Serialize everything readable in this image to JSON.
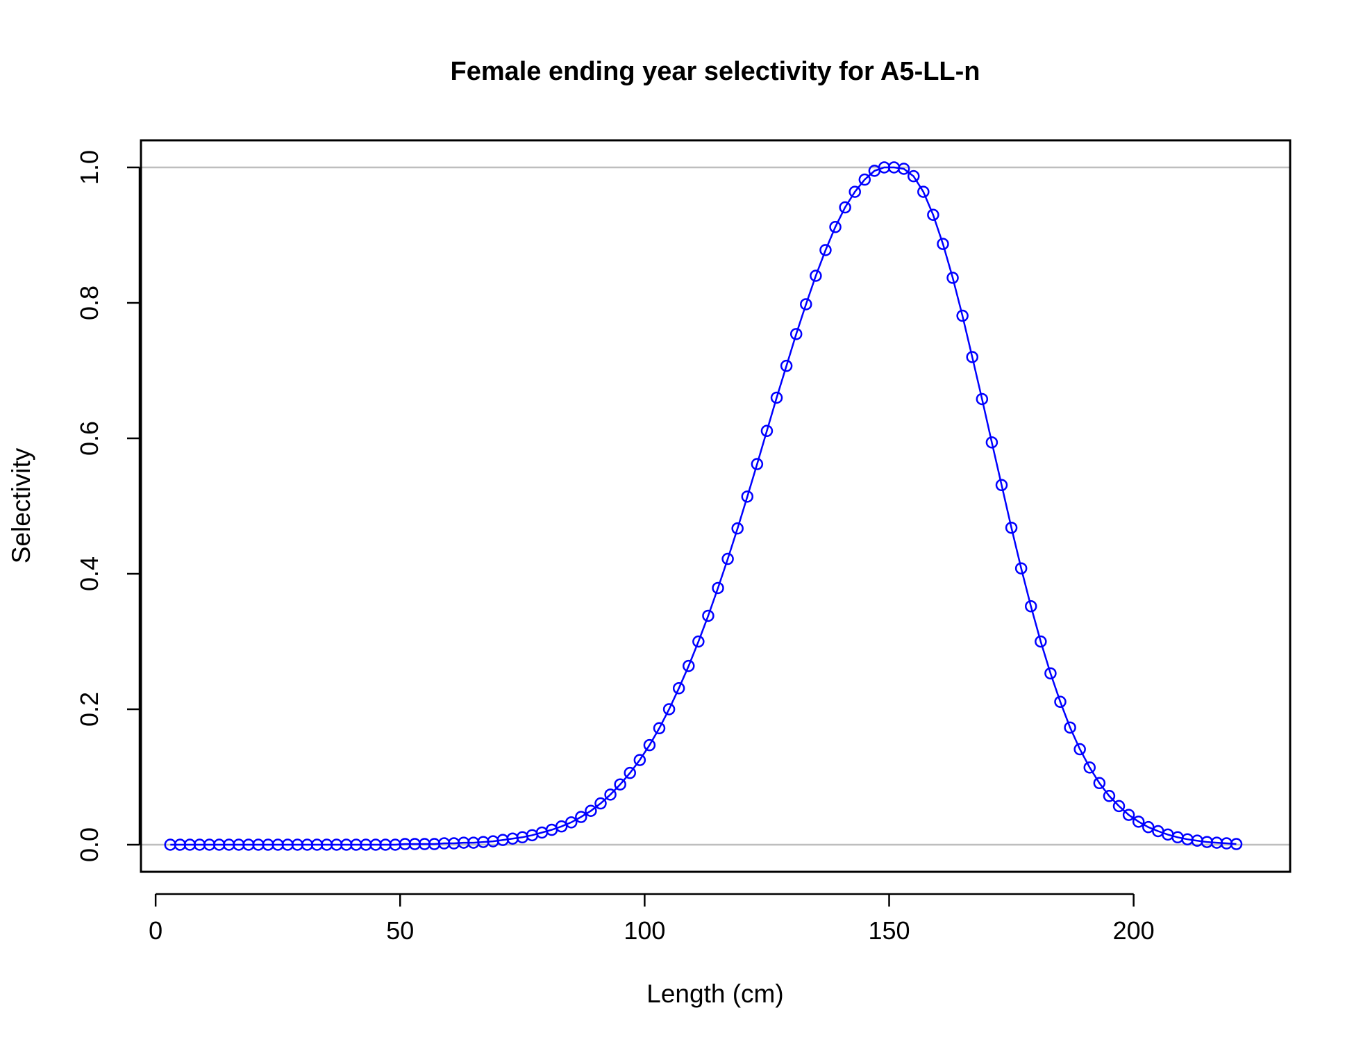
{
  "chart_data": {
    "type": "line",
    "title": "Female ending year selectivity for A5-LL-n",
    "xlabel": "Length (cm)",
    "ylabel": "Selectivity",
    "xlim": [
      -3,
      232
    ],
    "ylim": [
      -0.04,
      1.04
    ],
    "xticks": [
      0,
      50,
      100,
      150,
      200
    ],
    "xtick_labels": [
      "0",
      "50",
      "100",
      "150",
      "200"
    ],
    "yticks": [
      0.0,
      0.2,
      0.4,
      0.6,
      0.8,
      1.0
    ],
    "ytick_labels": [
      "0.0",
      "0.2",
      "0.4",
      "0.6",
      "0.8",
      "1.0"
    ],
    "reference_lines_y": [
      0,
      1
    ],
    "grid": false,
    "series_color": "#0000ff",
    "reference_color": "#bebebe",
    "series": [
      {
        "x": [
          3,
          5,
          7,
          9,
          11,
          13,
          15,
          17,
          19,
          21,
          23,
          25,
          27,
          29,
          31,
          33,
          35,
          37,
          39,
          41,
          43,
          45,
          47,
          49,
          51,
          53,
          55,
          57,
          59,
          61,
          63,
          65,
          67,
          69,
          71,
          73,
          75,
          77,
          79,
          81,
          83,
          85,
          87,
          89,
          91,
          93,
          95,
          97,
          99,
          101,
          103,
          105,
          107,
          109,
          111,
          113,
          115,
          117,
          119,
          121,
          123,
          125,
          127,
          129,
          131,
          133,
          135,
          137,
          139,
          141,
          143,
          145,
          147,
          149,
          151,
          153,
          155,
          157,
          159,
          161,
          163,
          165,
          167,
          169,
          171,
          173,
          175,
          177,
          179,
          181,
          183,
          185,
          187,
          189,
          191,
          193,
          195,
          197,
          199,
          201,
          203,
          205,
          207,
          209,
          211,
          213,
          215,
          217,
          219,
          221
        ],
        "y": [
          0.0,
          0.0,
          0.0,
          0.0,
          0.0,
          0.0,
          0.0,
          0.0,
          0.0,
          0.0,
          0.0,
          0.0,
          0.0,
          0.0,
          0.0,
          0.0,
          0.0,
          0.0,
          0.0,
          0.0,
          0.0,
          0.0,
          0.0,
          0.0,
          0.001,
          0.001,
          0.001,
          0.001,
          0.002,
          0.002,
          0.003,
          0.003,
          0.004,
          0.005,
          0.007,
          0.009,
          0.011,
          0.014,
          0.018,
          0.022,
          0.027,
          0.033,
          0.041,
          0.05,
          0.061,
          0.074,
          0.089,
          0.106,
          0.125,
          0.147,
          0.172,
          0.2,
          0.231,
          0.264,
          0.3,
          0.338,
          0.379,
          0.422,
          0.467,
          0.514,
          0.562,
          0.611,
          0.66,
          0.707,
          0.754,
          0.798,
          0.84,
          0.878,
          0.912,
          0.941,
          0.964,
          0.982,
          0.995,
          1.0,
          1.0,
          0.998,
          0.987,
          0.964,
          0.93,
          0.887,
          0.837,
          0.781,
          0.72,
          0.658,
          0.594,
          0.531,
          0.468,
          0.408,
          0.352,
          0.3,
          0.253,
          0.211,
          0.173,
          0.141,
          0.114,
          0.091,
          0.072,
          0.057,
          0.044,
          0.034,
          0.026,
          0.02,
          0.015,
          0.011,
          0.008,
          0.006,
          0.004,
          0.003,
          0.002,
          0.001
        ]
      }
    ]
  }
}
